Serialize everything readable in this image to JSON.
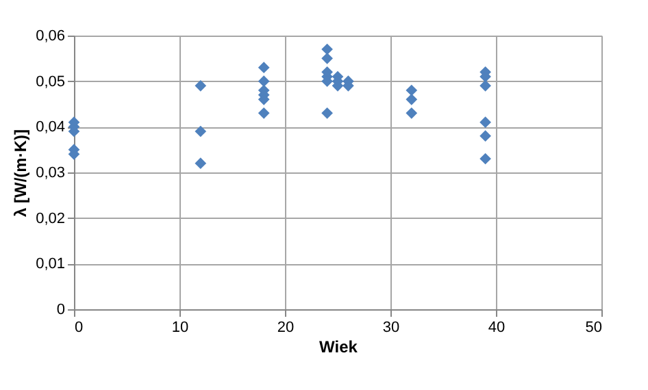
{
  "chart_data": {
    "type": "scatter",
    "xlabel": "Wiek",
    "ylabel": "λ [W/(m·K)]",
    "x": [
      0,
      0,
      0,
      0,
      0,
      12,
      12,
      12,
      18,
      18,
      18,
      18,
      18,
      18,
      24,
      24,
      24,
      24,
      24,
      24,
      25,
      25,
      25,
      26,
      26,
      32,
      32,
      32,
      39,
      39,
      39,
      39,
      39,
      39
    ],
    "series": [
      {
        "color": "#4f81bd",
        "values": [
          0.041,
          0.04,
          0.039,
          0.035,
          0.034,
          0.049,
          0.039,
          0.032,
          0.053,
          0.05,
          0.048,
          0.047,
          0.046,
          0.043,
          0.057,
          0.055,
          0.052,
          0.051,
          0.05,
          0.043,
          0.051,
          0.05,
          0.049,
          0.05,
          0.049,
          0.048,
          0.046,
          0.043,
          0.052,
          0.051,
          0.049,
          0.041,
          0.038,
          0.033
        ]
      }
    ],
    "xlim": [
      0,
      50
    ],
    "xticks": [
      0,
      10,
      20,
      30,
      40,
      50
    ],
    "ylim": [
      0,
      0.06
    ],
    "yticks": [
      0,
      {
        "value": 0.01,
        "label": "0,01"
      },
      {
        "value": 0.02,
        "label": "0,02"
      },
      {
        "value": 0.03,
        "label": "0,03"
      },
      {
        "value": 0.04,
        "label": "0,04"
      },
      {
        "value": 0.05,
        "label": "0,05"
      },
      {
        "value": 0.06,
        "label": "0,06"
      }
    ],
    "grid": true,
    "marker": "diamond",
    "legend": false
  }
}
